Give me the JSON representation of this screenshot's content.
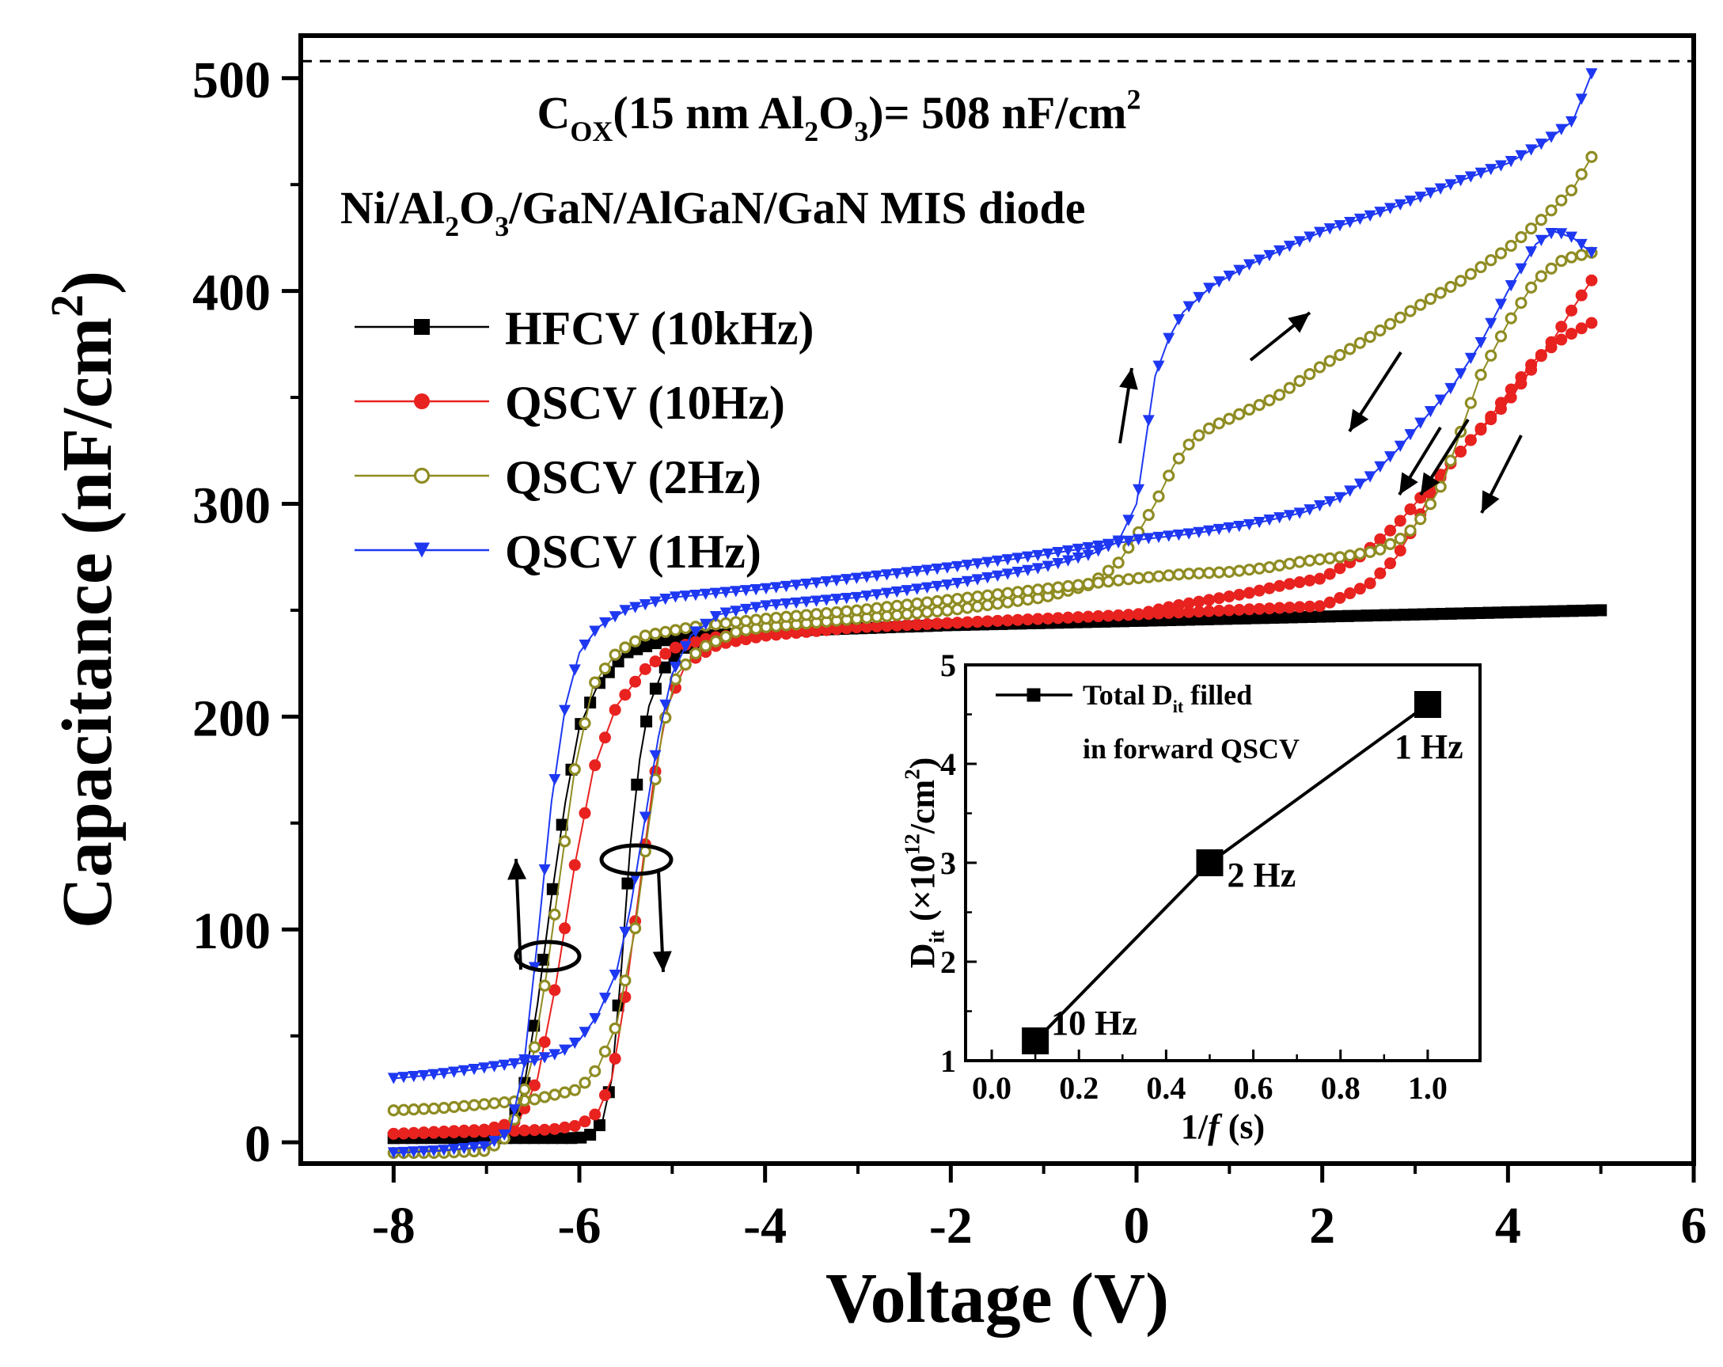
{
  "chart_data": [
    {
      "type": "line",
      "title": "",
      "xlabel": "Voltage (V)",
      "ylabel": "Capacitance (nF/cm²)",
      "ylabel_parts": {
        "main": "Capacitance (nF/cm",
        "sup": "2",
        "close": ")"
      },
      "xlim": [
        -9,
        6
      ],
      "ylim": [
        -10,
        520
      ],
      "x_ticks": [
        -8,
        -6,
        -4,
        -2,
        0,
        2,
        4,
        6
      ],
      "x_tick_labels": [
        "-8",
        "-6",
        "-4",
        "-2",
        "0",
        "2",
        "4",
        "6"
      ],
      "y_ticks": [
        0,
        100,
        200,
        300,
        400,
        500
      ],
      "y_tick_labels": [
        "0",
        "100",
        "200",
        "300",
        "400",
        "500"
      ],
      "reference_line": {
        "y": 508,
        "style": "dashed",
        "label": "COX(15 nm Al2O3)= 508 nF/cm2"
      },
      "annotation_1": {
        "parts": [
          {
            "t": "C",
            "s": "n"
          },
          {
            "t": "OX",
            "s": "sub"
          },
          {
            "t": "(15 nm Al",
            "s": "n"
          },
          {
            "t": "2",
            "s": "sub"
          },
          {
            "t": "O",
            "s": "n"
          },
          {
            "t": "3",
            "s": "sub"
          },
          {
            "t": ")= 508 nF/cm",
            "s": "n"
          },
          {
            "t": "2",
            "s": "sup"
          }
        ]
      },
      "annotation_2": {
        "parts": [
          {
            "t": "Ni/Al",
            "s": "n"
          },
          {
            "t": "2",
            "s": "sub"
          },
          {
            "t": "O",
            "s": "n"
          },
          {
            "t": "3",
            "s": "sub"
          },
          {
            "t": "/GaN/AlGaN/GaN MIS diode",
            "s": "n"
          }
        ]
      },
      "legend": {
        "position": "upper-left"
      },
      "series": [
        {
          "name": "HFCV (10kHz)",
          "color": "#000000",
          "marker": "square",
          "forward": [
            [
              -8,
              2
            ],
            [
              -6.5,
              2
            ],
            [
              -6.2,
              2
            ],
            [
              -6.0,
              2
            ],
            [
              -5.85,
              4
            ],
            [
              -5.75,
              10
            ],
            [
              -5.65,
              30
            ],
            [
              -5.55,
              80
            ],
            [
              -5.45,
              140
            ],
            [
              -5.35,
              180
            ],
            [
              -5.25,
              205
            ],
            [
              -5.1,
              222
            ],
            [
              -4.9,
              232
            ],
            [
              -4.5,
              238
            ],
            [
              -4,
              240
            ],
            [
              -2,
              243
            ],
            [
              0,
              245
            ],
            [
              2,
              247
            ],
            [
              4,
              249
            ],
            [
              5,
              250
            ]
          ],
          "reverse": [
            [
              5,
              250
            ],
            [
              2,
              247
            ],
            [
              0,
              245
            ],
            [
              -2,
              243
            ],
            [
              -4,
              240
            ],
            [
              -5,
              237
            ],
            [
              -5.5,
              230
            ],
            [
              -5.8,
              215
            ],
            [
              -6.0,
              195
            ],
            [
              -6.15,
              160
            ],
            [
              -6.3,
              115
            ],
            [
              -6.45,
              65
            ],
            [
              -6.6,
              25
            ],
            [
              -6.75,
              6
            ],
            [
              -7,
              3
            ],
            [
              -8,
              2
            ]
          ]
        },
        {
          "name": "QSCV (10Hz)",
          "color": "#e8221f",
          "marker": "filled-circle",
          "forward": [
            [
              -8,
              4
            ],
            [
              -7,
              5
            ],
            [
              -6.3,
              6
            ],
            [
              -6.0,
              8
            ],
            [
              -5.8,
              14
            ],
            [
              -5.65,
              30
            ],
            [
              -5.5,
              70
            ],
            [
              -5.35,
              120
            ],
            [
              -5.2,
              170
            ],
            [
              -5.05,
              205
            ],
            [
              -4.85,
              225
            ],
            [
              -4.5,
              234
            ],
            [
              -4,
              238
            ],
            [
              -3,
              242
            ],
            [
              -2,
              244
            ],
            [
              -1,
              246
            ],
            [
              0,
              248
            ],
            [
              1,
              250
            ],
            [
              2,
              252
            ],
            [
              2.5,
              262
            ],
            [
              2.8,
              275
            ],
            [
              3.0,
              290
            ],
            [
              3.2,
              308
            ],
            [
              3.4,
              320
            ],
            [
              3.6,
              330
            ],
            [
              3.8,
              340
            ],
            [
              4.0,
              352
            ],
            [
              4.3,
              368
            ],
            [
              4.6,
              378
            ],
            [
              4.9,
              385
            ]
          ],
          "reverse": [
            [
              4.9,
              405
            ],
            [
              4.7,
              392
            ],
            [
              4.5,
              378
            ],
            [
              4.2,
              360
            ],
            [
              4.0,
              348
            ],
            [
              3.6,
              330
            ],
            [
              3.2,
              310
            ],
            [
              2.8,
              290
            ],
            [
              2.4,
              275
            ],
            [
              2.0,
              265
            ],
            [
              1.6,
              262
            ],
            [
              1.2,
              258
            ],
            [
              0.8,
              255
            ],
            [
              0.4,
              252
            ],
            [
              0,
              248
            ],
            [
              -1,
              246
            ],
            [
              -2,
              244
            ],
            [
              -3,
              242
            ],
            [
              -4,
              240
            ],
            [
              -4.6,
              237
            ],
            [
              -5.0,
              232
            ],
            [
              -5.3,
              222
            ],
            [
              -5.6,
              205
            ],
            [
              -5.85,
              175
            ],
            [
              -6.05,
              130
            ],
            [
              -6.25,
              75
            ],
            [
              -6.45,
              30
            ],
            [
              -6.65,
              10
            ],
            [
              -7,
              6
            ],
            [
              -8,
              4
            ]
          ]
        },
        {
          "name": "QSCV (2Hz)",
          "color": "#8f8c23",
          "marker": "open-circle",
          "forward": [
            [
              -8,
              15
            ],
            [
              -7.5,
              16
            ],
            [
              -7,
              18
            ],
            [
              -6.5,
              20
            ],
            [
              -6.0,
              25
            ],
            [
              -5.8,
              35
            ],
            [
              -5.6,
              55
            ],
            [
              -5.4,
              100
            ],
            [
              -5.25,
              150
            ],
            [
              -5.1,
              195
            ],
            [
              -4.95,
              220
            ],
            [
              -4.7,
              232
            ],
            [
              -4.3,
              240
            ],
            [
              -4,
              242
            ],
            [
              -3,
              246
            ],
            [
              -2,
              250
            ],
            [
              -1,
              256
            ],
            [
              -0.5,
              262
            ],
            [
              -0.2,
              272
            ],
            [
              0,
              285
            ],
            [
              0.2,
              300
            ],
            [
              0.4,
              318
            ],
            [
              0.6,
              330
            ],
            [
              0.8,
              336
            ],
            [
              1.0,
              340
            ],
            [
              1.5,
              350
            ],
            [
              2.0,
              365
            ],
            [
              2.5,
              378
            ],
            [
              3.0,
              392
            ],
            [
              3.5,
              405
            ],
            [
              4.0,
              420
            ],
            [
              4.4,
              435
            ],
            [
              4.7,
              448
            ],
            [
              4.9,
              463
            ]
          ],
          "reverse": [
            [
              4.9,
              418
            ],
            [
              4.6,
              415
            ],
            [
              4.3,
              405
            ],
            [
              4.0,
              385
            ],
            [
              3.7,
              360
            ],
            [
              3.5,
              335
            ],
            [
              3.3,
              310
            ],
            [
              3.1,
              295
            ],
            [
              2.9,
              285
            ],
            [
              2.6,
              278
            ],
            [
              2.2,
              275
            ],
            [
              1.8,
              273
            ],
            [
              1.4,
              270
            ],
            [
              1.0,
              268
            ],
            [
              0.5,
              267
            ],
            [
              0,
              265
            ],
            [
              -1,
              260
            ],
            [
              -2,
              255
            ],
            [
              -3,
              250
            ],
            [
              -4,
              246
            ],
            [
              -4.8,
              242
            ],
            [
              -5.3,
              238
            ],
            [
              -5.6,
              230
            ],
            [
              -5.85,
              215
            ],
            [
              -6.05,
              175
            ],
            [
              -6.2,
              128
            ],
            [
              -6.35,
              80
            ],
            [
              -6.5,
              40
            ],
            [
              -6.65,
              15
            ],
            [
              -6.8,
              2
            ],
            [
              -7,
              -4
            ],
            [
              -7.5,
              -5
            ],
            [
              -8,
              -5
            ]
          ]
        },
        {
          "name": "QSCV (1Hz)",
          "color": "#1e38f2",
          "marker": "down-triangle",
          "forward": [
            [
              -8,
              30
            ],
            [
              -7.5,
              32
            ],
            [
              -7,
              35
            ],
            [
              -6.5,
              38
            ],
            [
              -6.2,
              42
            ],
            [
              -6.0,
              48
            ],
            [
              -5.8,
              60
            ],
            [
              -5.6,
              80
            ],
            [
              -5.45,
              110
            ],
            [
              -5.3,
              150
            ],
            [
              -5.15,
              190
            ],
            [
              -5.0,
              220
            ],
            [
              -4.8,
              238
            ],
            [
              -4.5,
              248
            ],
            [
              -4,
              252
            ],
            [
              -3,
              256
            ],
            [
              -2,
              262
            ],
            [
              -1,
              270
            ],
            [
              -0.5,
              276
            ],
            [
              -0.2,
              282
            ],
            [
              0,
              300
            ],
            [
              0.1,
              330
            ],
            [
              0.2,
              360
            ],
            [
              0.35,
              378
            ],
            [
              0.5,
              390
            ],
            [
              0.8,
              402
            ],
            [
              1.2,
              412
            ],
            [
              1.6,
              420
            ],
            [
              2.0,
              428
            ],
            [
              2.5,
              435
            ],
            [
              3.0,
              443
            ],
            [
              3.5,
              452
            ],
            [
              4.0,
              460
            ],
            [
              4.4,
              470
            ],
            [
              4.7,
              480
            ],
            [
              4.9,
              502
            ]
          ],
          "reverse": [
            [
              4.9,
              418
            ],
            [
              4.7,
              425
            ],
            [
              4.5,
              428
            ],
            [
              4.3,
              422
            ],
            [
              4.0,
              400
            ],
            [
              3.7,
              375
            ],
            [
              3.4,
              355
            ],
            [
              3.1,
              340
            ],
            [
              2.8,
              325
            ],
            [
              2.5,
              312
            ],
            [
              2.2,
              303
            ],
            [
              1.8,
              296
            ],
            [
              1.2,
              290
            ],
            [
              0.6,
              286
            ],
            [
              0,
              283
            ],
            [
              -1,
              276
            ],
            [
              -2,
              270
            ],
            [
              -3,
              265
            ],
            [
              -4,
              260
            ],
            [
              -5,
              256
            ],
            [
              -5.5,
              250
            ],
            [
              -5.8,
              242
            ],
            [
              -6.0,
              230
            ],
            [
              -6.15,
              205
            ],
            [
              -6.3,
              160
            ],
            [
              -6.45,
              95
            ],
            [
              -6.6,
              35
            ],
            [
              -6.75,
              5
            ],
            [
              -7,
              -2
            ],
            [
              -7.5,
              -4
            ],
            [
              -8,
              -5
            ]
          ]
        }
      ],
      "direction_arrows": {
        "style": "black line with arrowhead"
      }
    },
    {
      "type": "line",
      "title": "",
      "xlabel": "1/f (s)",
      "xlabel_parts": {
        "pre": "1/",
        "it": "f",
        "post": " (s)"
      },
      "ylabel": "Dit (×10^12/cm^2)",
      "ylabel_parts": [
        {
          "t": "D",
          "s": "n"
        },
        {
          "t": "it",
          "s": "sub"
        },
        {
          "t": " (×10",
          "s": "n"
        },
        {
          "t": "12",
          "s": "sup"
        },
        {
          "t": "/cm",
          "s": "n"
        },
        {
          "t": "2",
          "s": "sup"
        },
        {
          "t": ")",
          "s": "n"
        }
      ],
      "xlim": [
        -0.06,
        1.12
      ],
      "ylim": [
        1,
        5
      ],
      "x_ticks": [
        0.0,
        0.2,
        0.4,
        0.6,
        0.8,
        1.0
      ],
      "x_tick_labels": [
        "0.0",
        "0.2",
        "0.4",
        "0.6",
        "0.8",
        "1.0"
      ],
      "y_ticks": [
        1,
        2,
        3,
        4,
        5
      ],
      "y_tick_labels": [
        "1",
        "2",
        "3",
        "4",
        "5"
      ],
      "legend_line1_parts": [
        {
          "t": "Total D",
          "s": "n"
        },
        {
          "t": "it",
          "s": "sub"
        },
        {
          "t": " filled",
          "s": "n"
        }
      ],
      "legend_line2": "in forward QSCV",
      "series": [
        {
          "name": "Total Dit filled in forward QSCV",
          "color": "#000000",
          "marker": "square",
          "x": [
            0.1,
            0.5,
            1.0
          ],
          "y": [
            1.2,
            3.0,
            4.6
          ]
        }
      ],
      "point_labels": [
        "10 Hz",
        "2 Hz",
        "1 Hz"
      ]
    }
  ]
}
